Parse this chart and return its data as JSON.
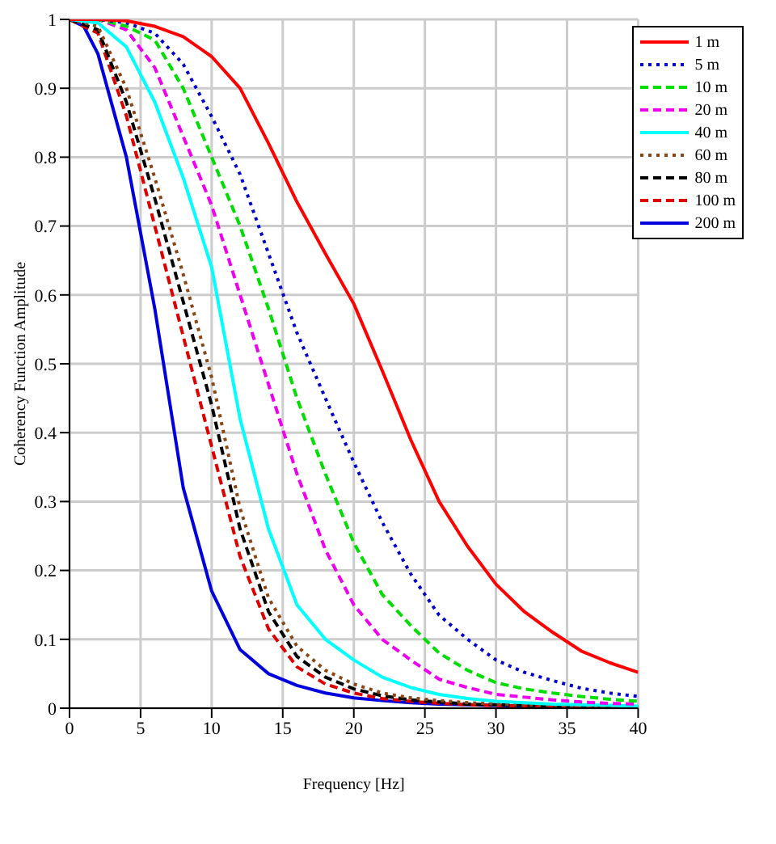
{
  "chart_data": {
    "type": "line",
    "xlabel": "Frequency [Hz]",
    "ylabel": "Coherency Function Amplitude",
    "x": [
      0,
      2,
      4,
      6,
      8,
      10,
      12,
      14,
      16,
      18,
      20,
      22,
      24,
      26,
      28,
      30,
      32,
      34,
      36,
      38,
      40
    ],
    "xlim": [
      0,
      40
    ],
    "xticks": [
      0,
      5,
      10,
      15,
      20,
      25,
      30,
      35,
      40
    ],
    "ylim": [
      0,
      1
    ],
    "yticks": [
      0,
      0.1,
      0.2,
      0.3,
      0.4,
      0.5,
      0.6,
      0.7,
      0.8,
      0.9,
      1
    ],
    "grid": true,
    "legend": "top right",
    "marker": "none",
    "series": [
      {
        "name": "1 m",
        "color": "#ff0000",
        "line_style": "solid",
        "values": [
          1,
          1,
          0.998,
          0.99,
          0.975,
          0.946,
          0.9,
          0.82,
          0.735,
          0.66,
          0.587,
          0.49,
          0.39,
          0.3,
          0.235,
          0.18,
          0.14,
          0.11,
          0.083,
          0.066,
          0.052
        ]
      },
      {
        "name": "5 m",
        "color": "#0000cc",
        "line_style": "dotted",
        "values": [
          1,
          1,
          0.995,
          0.98,
          0.935,
          0.859,
          0.775,
          0.66,
          0.545,
          0.45,
          0.357,
          0.27,
          0.195,
          0.135,
          0.1,
          0.07,
          0.052,
          0.04,
          0.029,
          0.022,
          0.017
        ]
      },
      {
        "name": "10 m",
        "color": "#00dd00",
        "line_style": "dashed",
        "values": [
          1,
          1,
          0.99,
          0.97,
          0.9,
          0.8,
          0.7,
          0.58,
          0.45,
          0.34,
          0.24,
          0.165,
          0.12,
          0.08,
          0.055,
          0.037,
          0.028,
          0.022,
          0.017,
          0.013,
          0.01
        ]
      },
      {
        "name": "20 m",
        "color": "#ee00ee",
        "line_style": "dashed",
        "values": [
          1,
          1,
          0.985,
          0.93,
          0.83,
          0.73,
          0.6,
          0.47,
          0.34,
          0.23,
          0.15,
          0.1,
          0.07,
          0.042,
          0.03,
          0.02,
          0.016,
          0.012,
          0.009,
          0.007,
          0.006
        ]
      },
      {
        "name": "40 m",
        "color": "#00ffff",
        "line_style": "solid",
        "values": [
          1,
          0.995,
          0.96,
          0.88,
          0.77,
          0.64,
          0.42,
          0.26,
          0.15,
          0.1,
          0.07,
          0.045,
          0.03,
          0.02,
          0.014,
          0.01,
          0.008,
          0.006,
          0.005,
          0.004,
          0.003
        ]
      },
      {
        "name": "60 m",
        "color": "#8b4513",
        "line_style": "dotted",
        "values": [
          1,
          0.99,
          0.9,
          0.77,
          0.63,
          0.48,
          0.29,
          0.16,
          0.09,
          0.055,
          0.035,
          0.022,
          0.015,
          0.011,
          0.008,
          0.006,
          0.005,
          0.004,
          0.003,
          0.003,
          0.002
        ]
      },
      {
        "name": "80 m",
        "color": "#000000",
        "line_style": "dashed",
        "values": [
          1,
          0.985,
          0.88,
          0.74,
          0.59,
          0.44,
          0.26,
          0.14,
          0.075,
          0.045,
          0.028,
          0.018,
          0.012,
          0.009,
          0.006,
          0.005,
          0.004,
          0.003,
          0.003,
          0.002,
          0.002
        ]
      },
      {
        "name": "100 m",
        "color": "#dd0000",
        "line_style": "dashed",
        "values": [
          1,
          0.98,
          0.86,
          0.7,
          0.54,
          0.38,
          0.22,
          0.115,
          0.06,
          0.035,
          0.022,
          0.014,
          0.01,
          0.007,
          0.005,
          0.004,
          0.003,
          0.003,
          0.002,
          0.002,
          0.002
        ]
      },
      {
        "name": "200 m",
        "color": "#0000dd",
        "line_style": "solid",
        "x": [
          0,
          1,
          2,
          4,
          6,
          8,
          10,
          12,
          14,
          16,
          18,
          20,
          22,
          24,
          26,
          28,
          30,
          32,
          34,
          36,
          38,
          40
        ],
        "values": [
          1,
          0.99,
          0.95,
          0.8,
          0.58,
          0.32,
          0.17,
          0.085,
          0.05,
          0.033,
          0.022,
          0.015,
          0.011,
          0.008,
          0.006,
          0.005,
          0.004,
          0.003,
          0.003,
          0.002,
          0.002,
          0.002
        ]
      }
    ]
  }
}
